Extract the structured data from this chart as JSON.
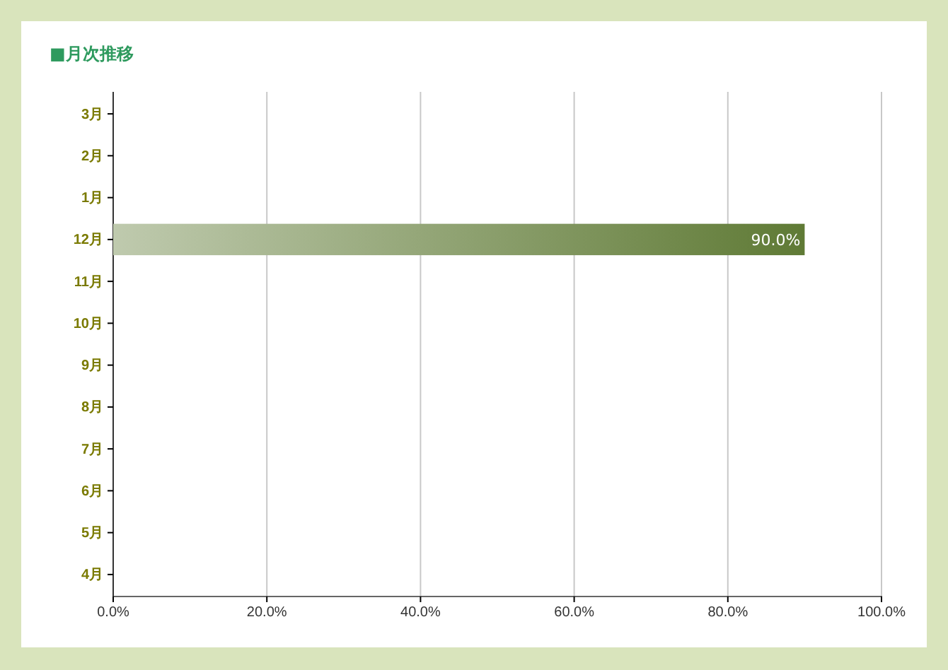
{
  "chart_data": {
    "type": "bar",
    "orientation": "horizontal",
    "title": "■月次推移",
    "categories": [
      "3月",
      "2月",
      "1月",
      "12月",
      "11月",
      "10月",
      "9月",
      "8月",
      "7月",
      "6月",
      "5月",
      "4月"
    ],
    "values": [
      null,
      null,
      null,
      90,
      null,
      null,
      null,
      null,
      null,
      null,
      null,
      null
    ],
    "value_labels": [
      null,
      null,
      null,
      "90.0%",
      null,
      null,
      null,
      null,
      null,
      null,
      null,
      null
    ],
    "color": "#5f7a35",
    "xlim": [
      0,
      100
    ],
    "xticks": [
      {
        "value": 0,
        "label": "0.0%"
      },
      {
        "value": 20,
        "label": "20.0%"
      },
      {
        "value": 40,
        "label": "40.0%"
      },
      {
        "value": 60,
        "label": "60.0%"
      },
      {
        "value": 80,
        "label": "80.0%"
      },
      {
        "value": 100,
        "label": "100.0%"
      }
    ],
    "grid": "x"
  }
}
